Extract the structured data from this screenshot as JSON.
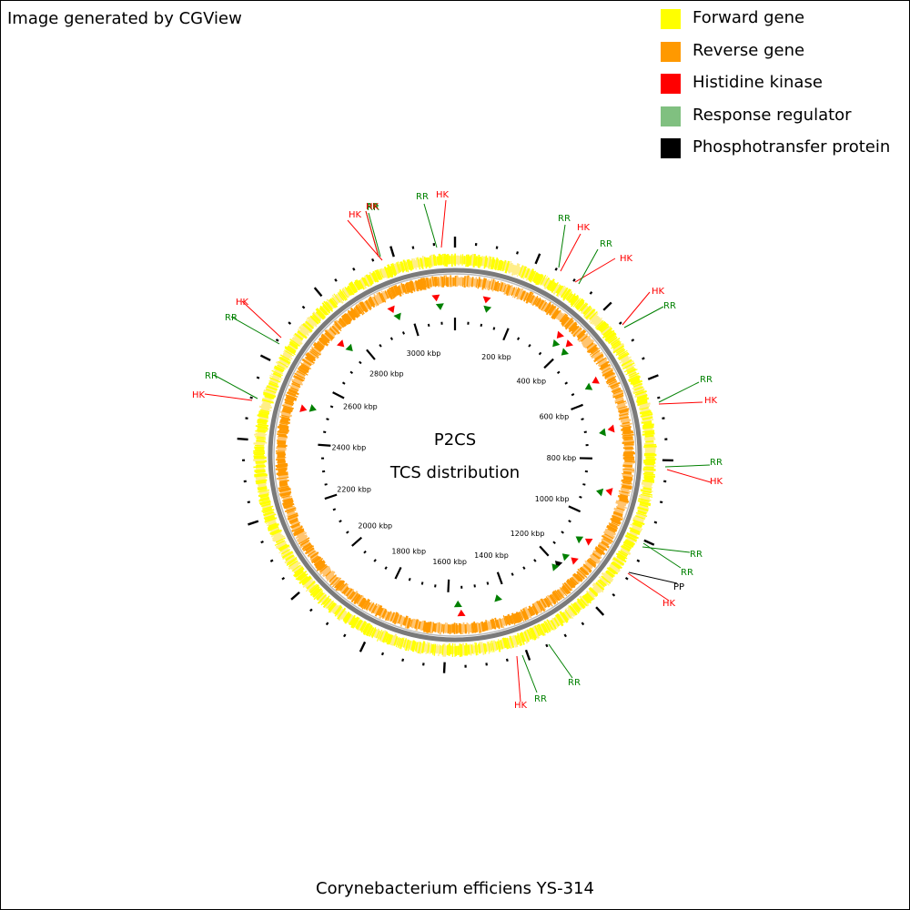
{
  "attribution": "Image generated by CGView",
  "legend": [
    {
      "label": "Forward gene",
      "color": "#ffff00"
    },
    {
      "label": "Reverse gene",
      "color": "#ff9900"
    },
    {
      "label": "Histidine kinase",
      "color": "#ff0000"
    },
    {
      "label": "Response regulator",
      "color": "#80c080"
    },
    {
      "label": "Phosphotransfer protein",
      "color": "#000000"
    }
  ],
  "center_title": "P2CS",
  "center_subtitle": "TCS distribution",
  "caption": "Corynebacterium efficiens YS-314",
  "genome_kbp": 3150,
  "tick_labels": [
    "200 kbp",
    "400 kbp",
    "600 kbp",
    "800 kbp",
    "1000 kbp",
    "1200 kbp",
    "1400 kbp",
    "1600 kbp",
    "1800 kbp",
    "2000 kbp",
    "2200 kbp",
    "2400 kbp",
    "2600 kbp",
    "2800 kbp",
    "3000 kbp"
  ],
  "features": [
    {
      "kbp": 100,
      "type": "HK"
    },
    {
      "kbp": 108,
      "type": "RR"
    },
    {
      "kbp": 360,
      "type": "HK"
    },
    {
      "kbp": 368,
      "type": "RR"
    },
    {
      "kbp": 400,
      "type": "HK"
    },
    {
      "kbp": 410,
      "type": "RR"
    },
    {
      "kbp": 545,
      "type": "HK"
    },
    {
      "kbp": 553,
      "type": "RR"
    },
    {
      "kbp": 705,
      "type": "HK"
    },
    {
      "kbp": 712,
      "type": "RR"
    },
    {
      "kbp": 903,
      "type": "HK"
    },
    {
      "kbp": 912,
      "type": "RR"
    },
    {
      "kbp": 1074,
      "type": "HK"
    },
    {
      "kbp": 1085,
      "type": "RR"
    },
    {
      "kbp": 1150,
      "type": "HK"
    },
    {
      "kbp": 1160,
      "type": "RR"
    },
    {
      "kbp": 1195,
      "type": "PP"
    },
    {
      "kbp": 1210,
      "type": "RR"
    },
    {
      "kbp": 1430,
      "type": "RR"
    },
    {
      "kbp": 1555,
      "type": "HK"
    },
    {
      "kbp": 1565,
      "type": "RR"
    },
    {
      "kbp": 2510,
      "type": "HK"
    },
    {
      "kbp": 2520,
      "type": "RR"
    },
    {
      "kbp": 2750,
      "type": "HK"
    },
    {
      "kbp": 2760,
      "type": "RR"
    },
    {
      "kbp": 2945,
      "type": "HK"
    },
    {
      "kbp": 2955,
      "type": "RR"
    },
    {
      "kbp": 3090,
      "type": "HK"
    },
    {
      "kbp": 3100,
      "type": "RR"
    }
  ],
  "callouts": [
    {
      "text": "HK",
      "type": "HK"
    },
    {
      "text": "RR",
      "type": "RR"
    },
    {
      "text": "RR",
      "type": "RR"
    },
    {
      "text": "HK",
      "type": "HK"
    },
    {
      "text": "RR",
      "type": "RR"
    },
    {
      "text": "HK",
      "type": "HK"
    },
    {
      "text": "HK",
      "type": "HK"
    },
    {
      "text": "RR",
      "type": "RR"
    },
    {
      "text": "HK",
      "type": "HK"
    },
    {
      "text": "RR",
      "type": "RR"
    },
    {
      "text": "RR",
      "type": "RR"
    },
    {
      "text": "HK",
      "type": "HK"
    },
    {
      "text": "RR",
      "type": "RR"
    },
    {
      "text": "HK",
      "type": "HK"
    },
    {
      "text": "PP",
      "type": "PP"
    },
    {
      "text": "RR",
      "type": "RR"
    },
    {
      "text": "RR",
      "type": "RR"
    },
    {
      "text": "HK",
      "type": "HK"
    },
    {
      "text": "RR",
      "type": "RR"
    },
    {
      "text": "RR",
      "type": "RR"
    },
    {
      "text": "HK",
      "type": "HK"
    },
    {
      "text": "RR",
      "type": "RR"
    },
    {
      "text": "HK",
      "type": "HK"
    },
    {
      "text": "RR",
      "type": "RR"
    },
    {
      "text": "HK",
      "type": "HK"
    },
    {
      "text": "RR",
      "type": "RR"
    },
    {
      "text": "HK",
      "type": "HK"
    }
  ],
  "type_colors": {
    "HK": "#ff0000",
    "RR": "#008000",
    "PP": "#000000"
  }
}
